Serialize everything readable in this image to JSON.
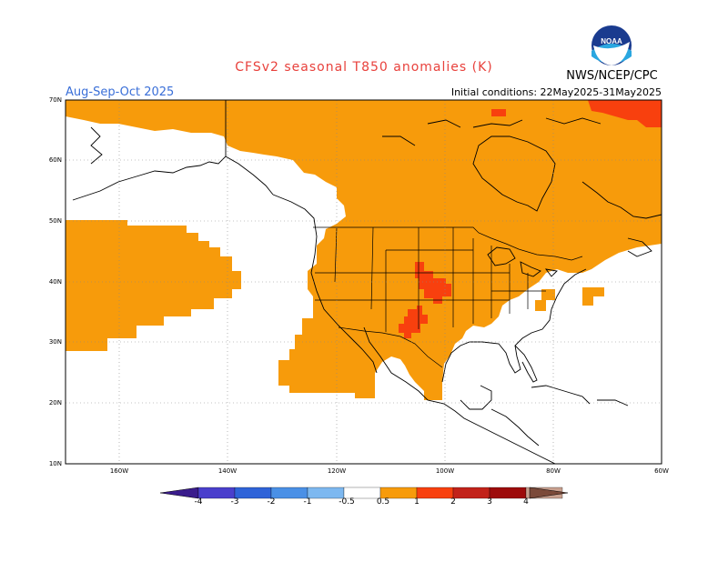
{
  "header": {
    "title": "CFSv2 seasonal T850 anomalies (K)",
    "agency": "NWS/NCEP/CPC",
    "season": "Aug-Sep-Oct 2025",
    "initial_conditions": "Initial conditions: 22May2025-31May2025"
  },
  "logo": {
    "text": "NOAA"
  },
  "map": {
    "lat_labels": [
      "70N",
      "60N",
      "50N",
      "40N",
      "30N",
      "20N",
      "10N"
    ],
    "lon_labels": [
      "160W",
      "140W",
      "120W",
      "100W",
      "80W",
      "60W"
    ]
  },
  "colorbar": {
    "labels": [
      "-4",
      "-3",
      "-2",
      "-1",
      "-0.5",
      "0.5",
      "1",
      "2",
      "3",
      "4"
    ],
    "colors": {
      "below_-4": "#3a1c8c",
      "-4_-3": "#4a3fcc",
      "-3_-2": "#2f63d8",
      "-2_-1": "#4a90e6",
      "-1_-0.5": "#7db8f0",
      "-0.5_0.5": "#ffffff",
      "0.5_1": "#f79b0b",
      "1_2": "#f8400e",
      "2_3": "#c2221a",
      "3_4": "#9d0b0b",
      "above_4": "#c9a08f",
      "top": "#7b4a3a"
    }
  },
  "colors": {
    "title": "#e8413c",
    "season": "#3a6fd8",
    "warm_anomaly": "#f79b0b",
    "strong_anomaly": "#f8400e"
  }
}
